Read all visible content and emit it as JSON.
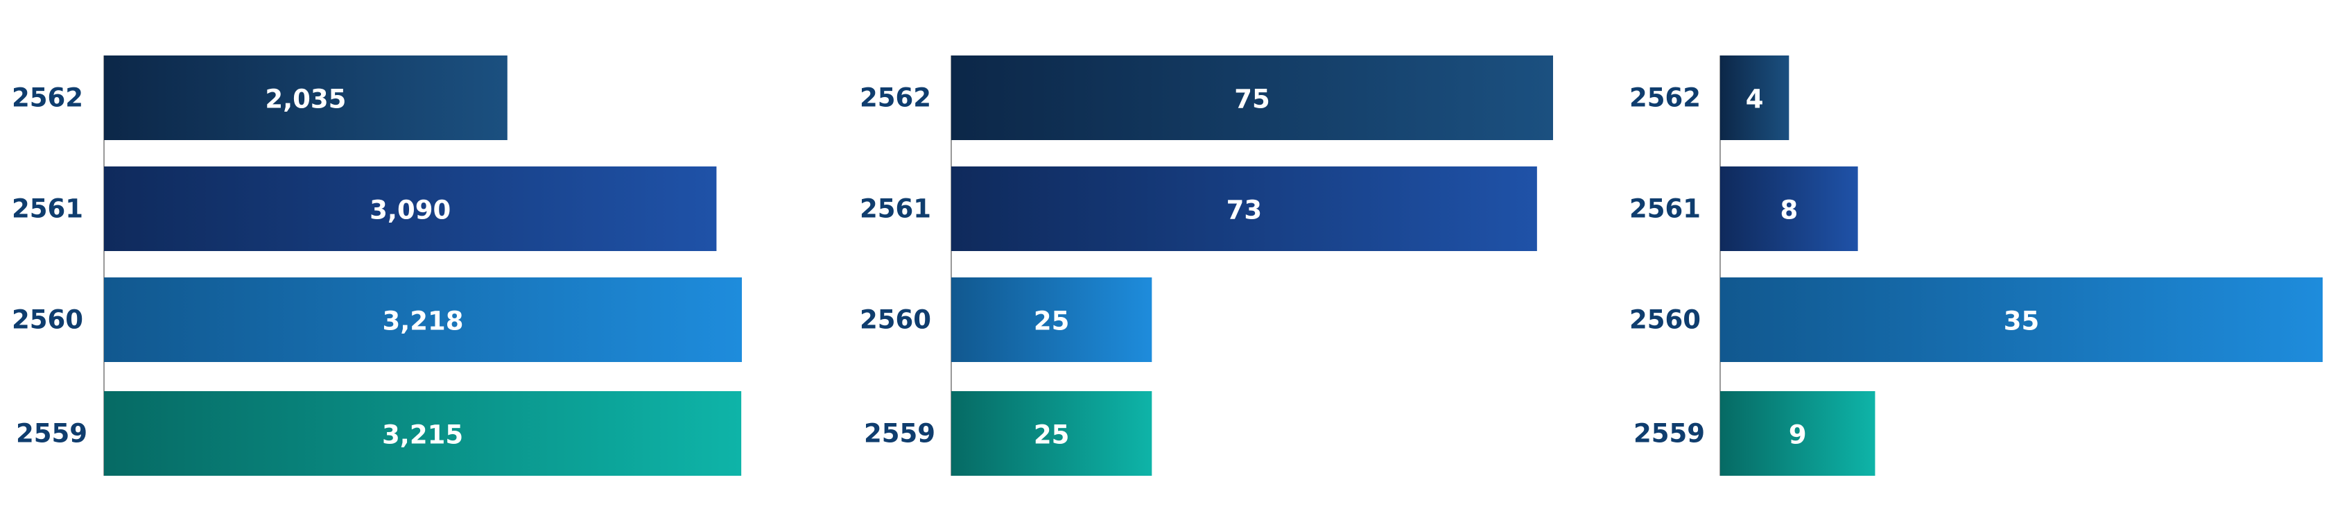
{
  "chart_data": [
    {
      "type": "bar",
      "orientation": "horizontal",
      "categories": [
        "2562",
        "2561",
        "2560",
        "2559"
      ],
      "values": [
        2035,
        3090,
        3218,
        3215
      ],
      "value_labels": [
        "2,035",
        "3,090",
        "3,218",
        "3,215"
      ],
      "xlim": [
        0,
        3218
      ],
      "grid": false,
      "legend": "none"
    },
    {
      "type": "bar",
      "orientation": "horizontal",
      "categories": [
        "2562",
        "2561",
        "2560",
        "2559"
      ],
      "values": [
        75,
        73,
        25,
        25
      ],
      "value_labels": [
        "75",
        "73",
        "25",
        "25"
      ],
      "xlim": [
        0,
        75
      ],
      "grid": false,
      "legend": "none"
    },
    {
      "type": "bar",
      "orientation": "horizontal",
      "categories": [
        "2562",
        "2561",
        "2560",
        "2559"
      ],
      "values": [
        4,
        8,
        35,
        9
      ],
      "value_labels": [
        "4",
        "8",
        "35",
        "9"
      ],
      "xlim": [
        0,
        35
      ],
      "grid": false,
      "legend": "none"
    }
  ],
  "colors": {
    "2562": [
      "#0c2748",
      "#1b5080"
    ],
    "2561": [
      "#0f2a5c",
      "#1f52a8"
    ],
    "2560": [
      "#11588f",
      "#1e8cdc"
    ],
    "2559": [
      "#066a64",
      "#0eb4a8"
    ],
    "category_label": "#0f3d6e",
    "axis": "#999999"
  }
}
